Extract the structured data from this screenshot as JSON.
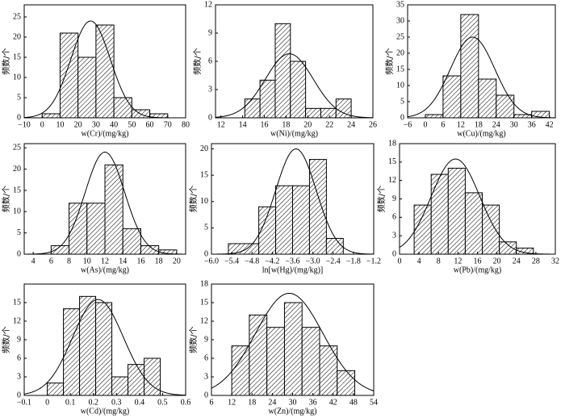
{
  "chart_data": [
    {
      "type": "histogram",
      "x_label": "w(Cr)/(mg/kg)",
      "y_label": "频数/个",
      "color": "#000000",
      "bins": [
        0,
        10,
        20,
        30,
        40,
        50,
        60,
        70
      ],
      "counts": [
        1,
        21,
        15,
        23,
        5,
        2,
        1
      ],
      "xlim": [
        -10,
        80
      ],
      "xticks": [
        {
          "value": -10,
          "label": "−10"
        },
        0,
        10,
        20,
        30,
        40,
        50,
        60,
        70,
        80
      ],
      "ylim": [
        0,
        28
      ],
      "yticks": [
        0,
        5,
        10,
        15,
        20,
        25
      ],
      "curve": {
        "mean": 27,
        "sd": 11,
        "peak": 24
      }
    },
    {
      "type": "histogram",
      "x_label": "w(Ni)/(mg/kg)",
      "y_label": "频数/个",
      "color": "#000000",
      "bins": [
        14.2,
        15.6,
        17.0,
        18.4,
        19.8,
        21.2,
        22.6,
        24.0
      ],
      "counts": [
        2,
        4,
        10,
        6,
        1,
        1,
        2
      ],
      "xlim": [
        11.5,
        26
      ],
      "xticks": [
        12,
        14,
        16,
        18,
        20,
        22,
        24,
        26
      ],
      "ylim": [
        0,
        12
      ],
      "yticks": [
        0,
        3,
        6,
        9,
        12
      ],
      "curve": {
        "mean": 18.3,
        "sd": 2.2,
        "peak": 6.8
      }
    },
    {
      "type": "histogram",
      "x_label": "w(Cu)/(mg/kg)",
      "y_label": "频数/个",
      "color": "#000000",
      "bins": [
        0,
        6,
        12,
        18,
        24,
        30,
        36,
        42
      ],
      "counts": [
        1,
        13,
        32,
        12,
        7,
        1,
        2
      ],
      "xlim": [
        -6,
        44
      ],
      "xticks": [
        {
          "value": -6,
          "label": "−6"
        },
        0,
        6,
        12,
        18,
        24,
        30,
        36,
        42
      ],
      "ylim": [
        0,
        35
      ],
      "yticks": [
        0,
        5,
        10,
        15,
        20,
        25,
        30,
        35
      ],
      "curve": {
        "mean": 16,
        "sd": 7.5,
        "peak": 25
      }
    },
    {
      "type": "histogram",
      "x_label": "w(As)/(mg/kg)",
      "y_label": "频数/个",
      "color": "#000000",
      "bins": [
        6,
        8,
        10,
        12,
        14,
        16,
        18,
        20
      ],
      "counts": [
        2,
        12,
        12,
        21,
        6,
        2,
        1
      ],
      "xlim": [
        3,
        21
      ],
      "xticks": [
        4,
        6,
        8,
        10,
        12,
        14,
        16,
        18,
        20
      ],
      "ylim": [
        0,
        26
      ],
      "yticks": [
        0,
        5,
        10,
        15,
        20,
        25
      ],
      "curve": {
        "mean": 12,
        "sd": 2.2,
        "peak": 24
      }
    },
    {
      "type": "histogram",
      "x_label": "ln[w(Hg)/(mg/kg)]",
      "y_label": "频数/个",
      "color": "#000000",
      "bins": [
        -5.5,
        -4.6,
        -4.1,
        -3.6,
        -3.1,
        -2.6,
        -2.1
      ],
      "counts": [
        2,
        9,
        13,
        13,
        18,
        3
      ],
      "xlim": [
        -6.0,
        -1.2
      ],
      "xticks": [
        {
          "value": -6.0,
          "label": "−6.0"
        },
        {
          "value": -5.4,
          "label": "−5.4"
        },
        {
          "value": -4.8,
          "label": "−4.8"
        },
        {
          "value": -4.2,
          "label": "−4.2"
        },
        {
          "value": -3.6,
          "label": "−3.6"
        },
        {
          "value": -3.0,
          "label": "−3.0"
        },
        {
          "value": -2.4,
          "label": "−2.4"
        },
        {
          "value": -1.8,
          "label": "−1.8"
        },
        {
          "value": -1.2,
          "label": "−1.2"
        }
      ],
      "ylim": [
        0,
        21
      ],
      "yticks": [
        0,
        5,
        10,
        15,
        20
      ],
      "curve": {
        "mean": -3.5,
        "sd": 0.6,
        "peak": 20
      }
    },
    {
      "type": "histogram",
      "x_label": "w(Pb)/(mg/kg)",
      "y_label": "频数/个",
      "color": "#000000",
      "bins": [
        3,
        6.5,
        10,
        13.5,
        17,
        20.5,
        24,
        27.5
      ],
      "counts": [
        8,
        13,
        14,
        10,
        8,
        2,
        1
      ],
      "xlim": [
        0,
        32
      ],
      "xticks": [
        0,
        4,
        8,
        12,
        16,
        20,
        24,
        28,
        32
      ],
      "ylim": [
        0,
        18
      ],
      "yticks": [
        0,
        3,
        6,
        9,
        12,
        15,
        18
      ],
      "curve": {
        "mean": 11.5,
        "sd": 5,
        "peak": 15.5
      }
    },
    {
      "type": "histogram",
      "x_label": "w(Cd)/(mg/kg)",
      "y_label": "频数/个",
      "color": "#000000",
      "bins": [
        0,
        0.07,
        0.14,
        0.21,
        0.28,
        0.35,
        0.42,
        0.49
      ],
      "counts": [
        2,
        14,
        16,
        15,
        3,
        5,
        6
      ],
      "xlim": [
        -0.1,
        0.6
      ],
      "xticks": [
        {
          "value": -0.1,
          "label": "−0.1"
        },
        0,
        0.1,
        0.2,
        0.3,
        0.4,
        0.5,
        0.6
      ],
      "ylim": [
        0,
        18
      ],
      "yticks": [
        0,
        3,
        6,
        9,
        12,
        15
      ],
      "curve": {
        "mean": 0.22,
        "sd": 0.11,
        "peak": 15.5
      }
    },
    {
      "type": "histogram",
      "x_label": "w(Zn)/(mg/kg)",
      "y_label": "频数/个",
      "color": "#000000",
      "bins": [
        12,
        17.2,
        22.4,
        27.6,
        32.8,
        38,
        43.2,
        48.4
      ],
      "counts": [
        8,
        13,
        11,
        15,
        11,
        8,
        4
      ],
      "xlim": [
        6,
        54
      ],
      "xticks": [
        6,
        12,
        18,
        24,
        30,
        36,
        42,
        48,
        54
      ],
      "ylim": [
        0,
        18
      ],
      "yticks": [
        0,
        3,
        6,
        9,
        12,
        15,
        18
      ],
      "curve": {
        "mean": 29,
        "sd": 10,
        "peak": 16.5
      }
    }
  ]
}
